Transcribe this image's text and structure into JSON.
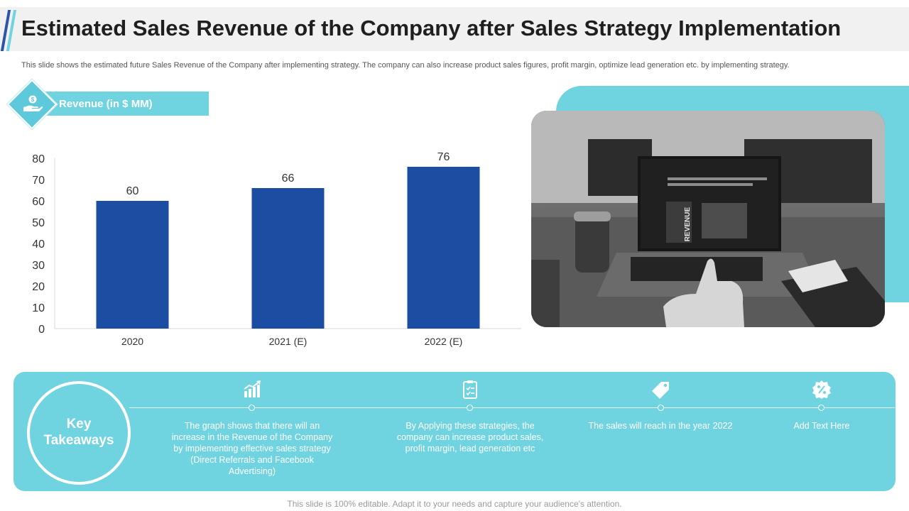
{
  "header": {
    "title": "Estimated Sales Revenue of the Company after Sales Strategy Implementation",
    "subtitle": "This slide shows the estimated future Sales Revenue of the Company after implementing strategy. The company can also increase product sales figures, profit margin, optimize lead generation etc. by implementing strategy."
  },
  "chart_data": {
    "type": "bar",
    "title": "Revenue (in $ MM)",
    "categories": [
      "2020",
      "2021 (E)",
      "2022 (E)"
    ],
    "values": [
      60,
      66,
      76
    ],
    "ylim": [
      0,
      80
    ],
    "yticks": [
      0,
      10,
      20,
      30,
      40,
      50,
      60,
      70,
      80
    ],
    "grid": false,
    "bar_color": "#1b4da3"
  },
  "photo": {
    "screen_word": "REVENUE"
  },
  "key_takeaways": {
    "label_line1": "Key",
    "label_line2": "Takeaways",
    "items": [
      {
        "icon": "bar-chart-growth-icon",
        "text": "The graph shows that there will an increase in the Revenue of the Company by implementing effective sales strategy (Direct Referrals and Facebook Advertising)"
      },
      {
        "icon": "clipboard-icon",
        "text": "By Applying these strategies, the company can increase product sales, profit margin, lead generation etc"
      },
      {
        "icon": "price-tag-icon",
        "text": "The sales will reach in the year 2022"
      },
      {
        "icon": "percent-badge-icon",
        "text": "Add Text Here"
      }
    ]
  },
  "footer": {
    "text": "This slide is 100% editable. Adapt it to your needs and capture your audience's attention."
  },
  "colors": {
    "accent": "#6fd3e0",
    "bar": "#1b4da3",
    "accent_dark": "#2a55a8"
  }
}
